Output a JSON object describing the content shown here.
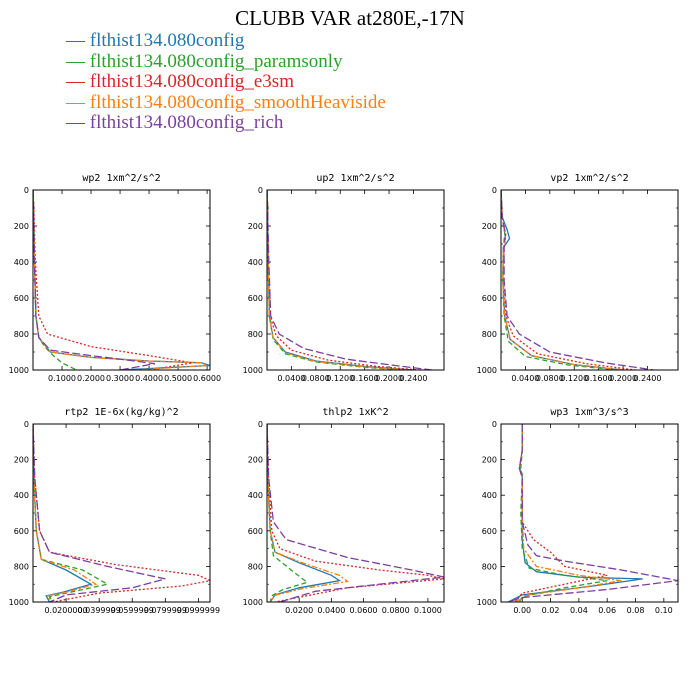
{
  "title": "CLUBB VAR at280E,-17N",
  "legend": [
    {
      "label": "flthist134.080config",
      "color": "#1f77b4",
      "dash": "solid"
    },
    {
      "label": "flthist134.080config_paramsonly",
      "color": "#2ca02c",
      "dash": "dash"
    },
    {
      "label": "flthist134.080config_e3sm",
      "color": "#d62728",
      "dash": "dot"
    },
    {
      "label": "flthist134.080config_smoothHeaviside",
      "color": "#ff7f0e",
      "dash": "dashdot"
    },
    {
      "label": "flthist134.080config_rich",
      "color": "#7b3fa0",
      "dash": "longdash"
    }
  ],
  "chart_data": [
    {
      "type": "line",
      "title": "wp2  1xm^2/s^2",
      "xlim": [
        0,
        0.61
      ],
      "ylim": [
        0,
        1000
      ],
      "xticks": [
        0.1,
        0.2,
        0.3,
        0.4,
        0.5,
        0.6
      ],
      "xtick_labels": [
        "0.1000",
        "0.2000",
        "0.3000",
        "0.4000",
        "0.5000",
        "0.6000"
      ],
      "yticks": [
        0,
        200,
        400,
        600,
        800,
        1000
      ],
      "ytick_labels": [
        "0",
        "200",
        "400",
        "600",
        "800",
        "1000"
      ],
      "series": [
        {
          "name": "flthist134.080config",
          "x": [
            0.0,
            0.002,
            0.005,
            0.01,
            0.02,
            0.06,
            0.2,
            0.4,
            0.58,
            0.61,
            0.3
          ],
          "y": [
            0,
            100,
            400,
            700,
            820,
            900,
            930,
            950,
            960,
            975,
            1000
          ]
        },
        {
          "name": "flthist134.080config_paramsonly",
          "x": [
            0.0,
            0.002,
            0.005,
            0.01,
            0.02,
            0.04,
            0.07,
            0.1,
            0.15
          ],
          "y": [
            0,
            100,
            400,
            700,
            820,
            870,
            920,
            960,
            1000
          ]
        },
        {
          "name": "flthist134.080config_e3sm",
          "x": [
            0.0,
            0.003,
            0.008,
            0.02,
            0.05,
            0.2,
            0.4,
            0.55,
            0.4
          ],
          "y": [
            0,
            100,
            400,
            700,
            800,
            870,
            920,
            960,
            1000
          ]
        },
        {
          "name": "flthist134.080config_smoothHeaviside",
          "x": [
            0.0,
            0.002,
            0.005,
            0.01,
            0.02,
            0.06,
            0.2,
            0.4,
            0.58,
            0.6,
            0.35
          ],
          "y": [
            0,
            100,
            400,
            700,
            820,
            900,
            930,
            950,
            960,
            975,
            1000
          ]
        },
        {
          "name": "flthist134.080config_rich",
          "x": [
            0.0,
            0.002,
            0.005,
            0.01,
            0.02,
            0.06,
            0.2,
            0.35,
            0.42,
            0.3
          ],
          "y": [
            0,
            100,
            400,
            700,
            820,
            890,
            920,
            950,
            965,
            1000
          ]
        }
      ]
    },
    {
      "type": "line",
      "title": "up2  1xm^2/s^2",
      "xlim": [
        0,
        0.29
      ],
      "ylim": [
        0,
        1000
      ],
      "xticks": [
        0.04,
        0.08,
        0.12,
        0.16,
        0.2,
        0.24
      ],
      "xtick_labels": [
        "0.0400",
        "0.0800",
        "0.1200",
        "0.1600",
        "0.2000",
        "0.2400"
      ],
      "yticks": [
        0,
        200,
        400,
        600,
        800,
        1000
      ],
      "ytick_labels": [
        "0",
        "200",
        "400",
        "600",
        "800",
        "1000"
      ],
      "series": [
        {
          "name": "flthist134.080config",
          "x": [
            0.0,
            0.001,
            0.002,
            0.004,
            0.01,
            0.03,
            0.08,
            0.16,
            0.24
          ],
          "y": [
            0,
            100,
            400,
            700,
            820,
            900,
            950,
            980,
            1000
          ]
        },
        {
          "name": "flthist134.080config_paramsonly",
          "x": [
            0.0,
            0.001,
            0.002,
            0.004,
            0.01,
            0.03,
            0.08,
            0.16,
            0.22
          ],
          "y": [
            0,
            100,
            400,
            700,
            830,
            910,
            955,
            985,
            1000
          ]
        },
        {
          "name": "flthist134.080config_e3sm",
          "x": [
            0.0,
            0.001,
            0.002,
            0.005,
            0.015,
            0.04,
            0.1,
            0.18,
            0.25
          ],
          "y": [
            0,
            100,
            400,
            700,
            810,
            890,
            945,
            980,
            1000
          ]
        },
        {
          "name": "flthist134.080config_smoothHeaviside",
          "x": [
            0.0,
            0.001,
            0.002,
            0.004,
            0.01,
            0.03,
            0.08,
            0.16,
            0.23
          ],
          "y": [
            0,
            100,
            400,
            700,
            820,
            905,
            952,
            982,
            1000
          ]
        },
        {
          "name": "flthist134.080config_rich",
          "x": [
            0.0,
            0.001,
            0.003,
            0.006,
            0.02,
            0.06,
            0.13,
            0.21,
            0.27
          ],
          "y": [
            0,
            100,
            400,
            700,
            800,
            880,
            940,
            975,
            1000
          ]
        }
      ]
    },
    {
      "type": "line",
      "title": "vp2  1xm^2/s^2",
      "xlim": [
        0,
        0.29
      ],
      "ylim": [
        0,
        1000
      ],
      "xticks": [
        0.04,
        0.08,
        0.12,
        0.16,
        0.2,
        0.24
      ],
      "xtick_labels": [
        "0.0400",
        "0.0800",
        "0.1200",
        "0.1600",
        "0.2000",
        "0.2400"
      ],
      "yticks": [
        0,
        200,
        400,
        600,
        800,
        1000
      ],
      "ytick_labels": [
        "0",
        "200",
        "400",
        "600",
        "800",
        "1000"
      ],
      "series": [
        {
          "name": "flthist134.080config",
          "x": [
            0.0,
            0.002,
            0.01,
            0.014,
            0.004,
            0.003,
            0.006,
            0.015,
            0.05,
            0.12,
            0.2
          ],
          "y": [
            0,
            150,
            220,
            270,
            320,
            500,
            700,
            830,
            920,
            970,
            1000
          ]
        },
        {
          "name": "flthist134.080config_paramsonly",
          "x": [
            0.0,
            0.002,
            0.006,
            0.004,
            0.003,
            0.005,
            0.012,
            0.04,
            0.11,
            0.19
          ],
          "y": [
            0,
            150,
            240,
            320,
            500,
            700,
            840,
            925,
            972,
            1000
          ]
        },
        {
          "name": "flthist134.080config_e3sm",
          "x": [
            0.0,
            0.002,
            0.008,
            0.005,
            0.004,
            0.008,
            0.02,
            0.06,
            0.14,
            0.22
          ],
          "y": [
            0,
            150,
            250,
            320,
            500,
            700,
            810,
            910,
            965,
            1000
          ]
        },
        {
          "name": "flthist134.080config_smoothHeaviside",
          "x": [
            0.0,
            0.002,
            0.008,
            0.004,
            0.003,
            0.006,
            0.015,
            0.05,
            0.12,
            0.2
          ],
          "y": [
            0,
            150,
            250,
            320,
            500,
            700,
            830,
            920,
            970,
            1000
          ]
        },
        {
          "name": "flthist134.080config_rich",
          "x": [
            0.0,
            0.002,
            0.007,
            0.005,
            0.005,
            0.01,
            0.03,
            0.08,
            0.17,
            0.25
          ],
          "y": [
            0,
            150,
            250,
            320,
            500,
            700,
            800,
            900,
            960,
            1000
          ]
        }
      ]
    },
    {
      "type": "line",
      "title": "rtp2  1E-6x(kg/kg)^2",
      "xlim": [
        0,
        0.107
      ],
      "ylim": [
        0,
        1000
      ],
      "xticks": [
        0.02,
        0.04,
        0.06,
        0.08,
        0.1
      ],
      "xtick_labels": [
        "0.0200000",
        "0.0399999",
        "0.0599999",
        "0.0799999",
        "0.0999999"
      ],
      "yticks": [
        0,
        200,
        400,
        600,
        800,
        1000
      ],
      "ytick_labels": [
        "0",
        "200",
        "400",
        "600",
        "800",
        "1000"
      ],
      "series": [
        {
          "name": "flthist134.080config",
          "x": [
            0.0,
            0.0005,
            0.002,
            0.005,
            0.02,
            0.035,
            0.018,
            0.008,
            0.01
          ],
          "y": [
            0,
            300,
            600,
            760,
            820,
            900,
            945,
            965,
            1000
          ]
        },
        {
          "name": "flthist134.080config_paramsonly",
          "x": [
            0.0,
            0.0005,
            0.002,
            0.005,
            0.03,
            0.045,
            0.02,
            0.01,
            0.012
          ],
          "y": [
            0,
            300,
            600,
            760,
            820,
            900,
            950,
            970,
            1000
          ]
        },
        {
          "name": "flthist134.080config_e3sm",
          "x": [
            0.0,
            0.001,
            0.004,
            0.01,
            0.05,
            0.1,
            0.107,
            0.09,
            0.04,
            0.012
          ],
          "y": [
            0,
            300,
            600,
            720,
            790,
            850,
            880,
            910,
            950,
            1000
          ]
        },
        {
          "name": "flthist134.080config_smoothHeaviside",
          "x": [
            0.0,
            0.0005,
            0.002,
            0.005,
            0.025,
            0.038,
            0.02,
            0.009,
            0.011
          ],
          "y": [
            0,
            300,
            600,
            760,
            820,
            900,
            945,
            965,
            1000
          ]
        },
        {
          "name": "flthist134.080config_rich",
          "x": [
            0.0,
            0.001,
            0.004,
            0.01,
            0.045,
            0.08,
            0.06,
            0.02,
            0.01
          ],
          "y": [
            0,
            300,
            600,
            720,
            800,
            870,
            920,
            960,
            1000
          ]
        }
      ]
    },
    {
      "type": "line",
      "title": "thlp2  1xK^2",
      "xlim": [
        0,
        0.11
      ],
      "ylim": [
        0,
        1000
      ],
      "xticks": [
        0.02,
        0.04,
        0.06,
        0.08,
        0.1
      ],
      "xtick_labels": [
        "0.0200",
        "0.0400",
        "0.0600",
        "0.0800",
        "0.1000"
      ],
      "yticks": [
        0,
        200,
        400,
        600,
        800,
        1000
      ],
      "ytick_labels": [
        "0",
        "200",
        "400",
        "600",
        "800",
        "1000"
      ],
      "series": [
        {
          "name": "flthist134.080config",
          "x": [
            0.0,
            0.0005,
            0.002,
            0.005,
            0.02,
            0.04,
            0.045,
            0.02,
            0.005,
            0.002
          ],
          "y": [
            0,
            300,
            600,
            720,
            780,
            850,
            880,
            920,
            960,
            1000
          ]
        },
        {
          "name": "flthist134.080config_paramsonly",
          "x": [
            0.0,
            0.0005,
            0.002,
            0.004,
            0.015,
            0.025,
            0.01,
            0.003,
            0.002
          ],
          "y": [
            0,
            300,
            600,
            740,
            820,
            890,
            930,
            965,
            1000
          ]
        },
        {
          "name": "flthist134.080config_e3sm",
          "x": [
            0.0,
            0.001,
            0.003,
            0.008,
            0.03,
            0.07,
            0.1,
            0.11,
            0.05,
            0.005
          ],
          "y": [
            0,
            300,
            600,
            700,
            770,
            820,
            850,
            870,
            920,
            1000
          ]
        },
        {
          "name": "flthist134.080config_smoothHeaviside",
          "x": [
            0.0,
            0.0005,
            0.002,
            0.005,
            0.022,
            0.045,
            0.05,
            0.022,
            0.005,
            0.002
          ],
          "y": [
            0,
            300,
            600,
            720,
            780,
            850,
            885,
            925,
            962,
            1000
          ]
        },
        {
          "name": "flthist134.080config_rich",
          "x": [
            0.0,
            0.001,
            0.004,
            0.012,
            0.05,
            0.09,
            0.11,
            0.08,
            0.03,
            0.008
          ],
          "y": [
            0,
            300,
            550,
            650,
            750,
            820,
            860,
            890,
            940,
            1000
          ]
        }
      ]
    },
    {
      "type": "line",
      "title": "wp3  1xm^3/s^3",
      "xlim": [
        -0.015,
        0.11
      ],
      "ylim": [
        0,
        1000
      ],
      "xticks": [
        0.0,
        0.02,
        0.04,
        0.06,
        0.08,
        0.1
      ],
      "xtick_labels": [
        "0.00",
        "0.02",
        "0.04",
        "0.06",
        "0.08",
        "0.10"
      ],
      "yticks": [
        0,
        200,
        400,
        600,
        800,
        1000
      ],
      "ytick_labels": [
        "0",
        "200",
        "400",
        "600",
        "800",
        "1000"
      ],
      "series": [
        {
          "name": "flthist134.080config",
          "x": [
            0.0,
            0.0,
            -0.002,
            0.0,
            0.0,
            0.0,
            0.002,
            0.01,
            0.04,
            0.085,
            0.05,
            0.0,
            -0.01
          ],
          "y": [
            0,
            150,
            250,
            280,
            400,
            650,
            780,
            830,
            860,
            870,
            910,
            960,
            1000
          ]
        },
        {
          "name": "flthist134.080config_paramsonly",
          "x": [
            0.0,
            0.0,
            -0.001,
            0.0,
            -0.001,
            0.0,
            0.005,
            0.03,
            0.06,
            0.03,
            0.0,
            -0.002
          ],
          "y": [
            0,
            150,
            250,
            300,
            500,
            700,
            810,
            850,
            880,
            920,
            970,
            1000
          ]
        },
        {
          "name": "flthist134.080config_e3sm",
          "x": [
            0.0,
            0.0,
            -0.002,
            0.0,
            0.0,
            0.008,
            0.02,
            0.03,
            0.06,
            0.03,
            0.0,
            -0.005
          ],
          "y": [
            0,
            150,
            250,
            300,
            550,
            650,
            720,
            800,
            850,
            900,
            950,
            1000
          ]
        },
        {
          "name": "flthist134.080config_smoothHeaviside",
          "x": [
            0.0,
            0.0,
            -0.002,
            0.0,
            0.0,
            0.001,
            0.01,
            0.04,
            0.07,
            0.04,
            0.005,
            -0.005
          ],
          "y": [
            0,
            150,
            250,
            300,
            500,
            700,
            800,
            850,
            880,
            920,
            960,
            1000
          ]
        },
        {
          "name": "flthist134.080config_rich",
          "x": [
            0.0,
            0.0,
            -0.002,
            0.0,
            0.0,
            0.004,
            0.01,
            0.03,
            0.07,
            0.11,
            0.06,
            0.0,
            -0.01
          ],
          "y": [
            0,
            150,
            250,
            300,
            550,
            680,
            740,
            770,
            820,
            880,
            930,
            975,
            1000
          ]
        }
      ]
    }
  ]
}
